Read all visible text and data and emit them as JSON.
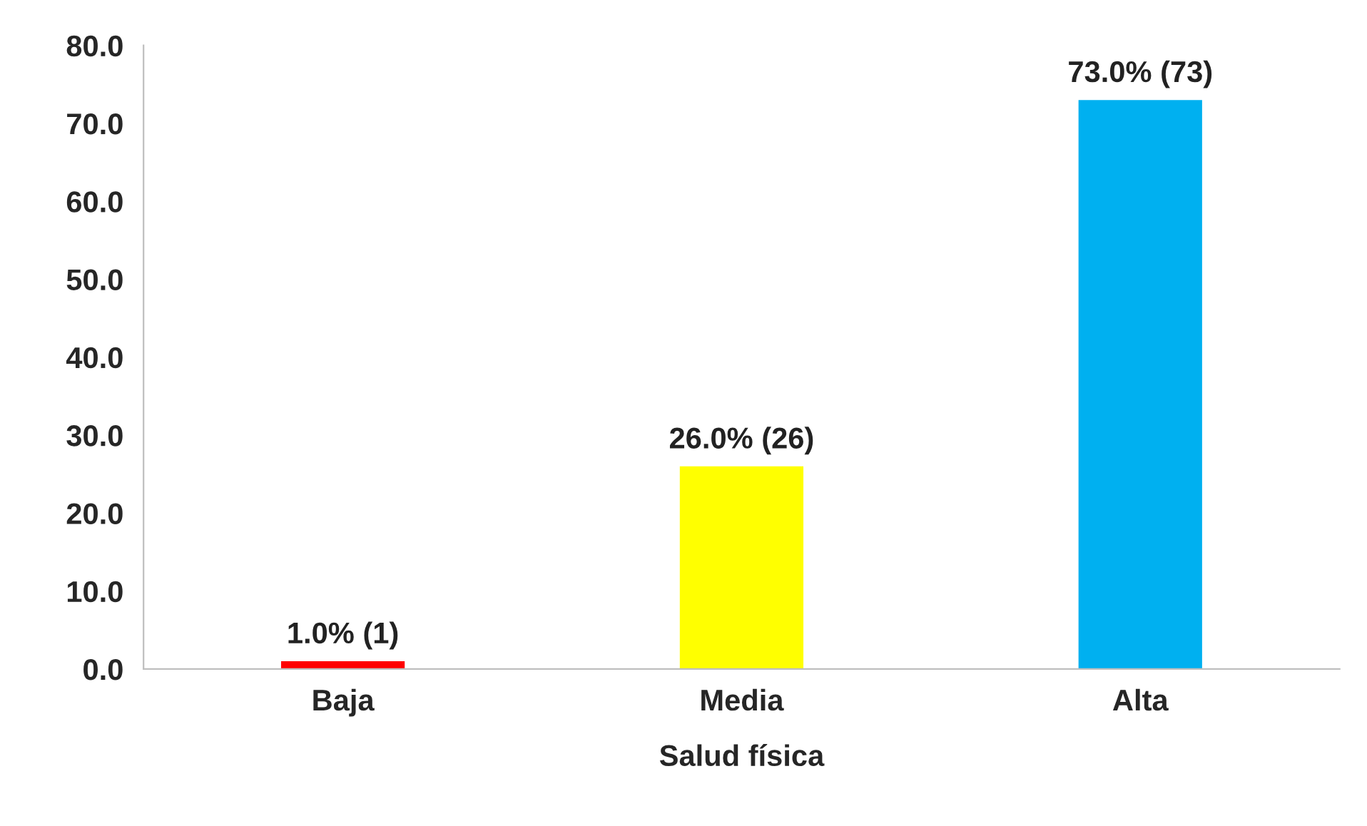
{
  "chart_data": {
    "type": "bar",
    "xlabel": "Salud física",
    "categories": [
      "Baja",
      "Media",
      "Alta"
    ],
    "values": [
      1,
      26,
      73
    ],
    "colors": [
      "#ff0000",
      "#ffff00",
      "#00b0f0"
    ],
    "value_labels": [
      "1.0% (1)",
      "26.0% (26)",
      "73.0% (73)"
    ],
    "ylim": [
      0,
      80
    ],
    "yticks": [
      {
        "value": 0,
        "label": "0.0"
      },
      {
        "value": 10,
        "label": "10.0"
      },
      {
        "value": 20,
        "label": "20.0"
      },
      {
        "value": 30,
        "label": "30.0"
      },
      {
        "value": 40,
        "label": "40.0"
      },
      {
        "value": 50,
        "label": "50.0"
      },
      {
        "value": 60,
        "label": "60.0"
      },
      {
        "value": 70,
        "label": "70.0"
      },
      {
        "value": 80,
        "label": "80.0"
      }
    ],
    "grid": false,
    "legend": false
  }
}
